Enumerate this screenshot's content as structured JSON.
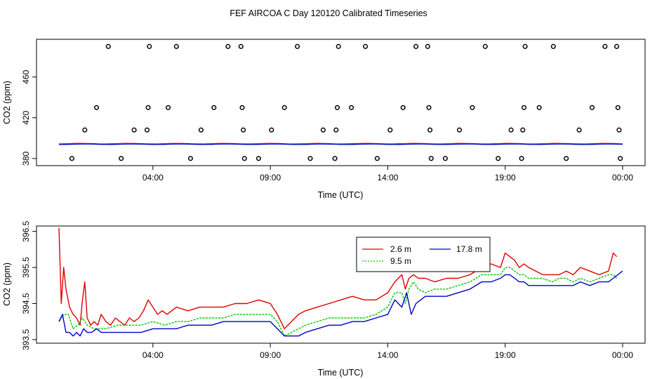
{
  "figure_title": "FEF AIRCOA C  Day 120120  Calibrated Timeseries",
  "colors": {
    "red": "#e00000",
    "green": "#00c800",
    "blue": "#0000c8",
    "axis": "#000000",
    "markers": "#000000"
  },
  "chart_data": [
    {
      "type": "scatter",
      "name": "raw-ppm-panel",
      "title": "",
      "xlabel": "Time (UTC)",
      "ylabel": "CO2 (ppm)",
      "xlim": [
        0,
        24.0
      ],
      "ylim": [
        373,
        497
      ],
      "xticks": [
        4,
        9,
        14,
        19,
        24
      ],
      "xtick_labels": [
        "04:00",
        "09:00",
        "14:00",
        "19:00",
        "00:00"
      ],
      "yticks": [
        380,
        420,
        460
      ],
      "ytick_labels": [
        "380",
        "420",
        "460"
      ],
      "marker_series": {
        "name": "calibration standards",
        "points": [
          [
            0.55,
            380
          ],
          [
            1.1,
            408
          ],
          [
            1.6,
            430
          ],
          [
            2.1,
            490
          ],
          [
            2.65,
            380
          ],
          [
            3.2,
            408
          ],
          [
            3.75,
            408
          ],
          [
            3.8,
            430
          ],
          [
            3.85,
            490
          ],
          [
            4.65,
            430
          ],
          [
            5.0,
            490
          ],
          [
            5.6,
            380
          ],
          [
            6.05,
            408
          ],
          [
            6.6,
            430
          ],
          [
            7.2,
            490
          ],
          [
            7.75,
            490
          ],
          [
            7.8,
            430
          ],
          [
            7.85,
            408
          ],
          [
            7.9,
            380
          ],
          [
            8.5,
            380
          ],
          [
            9.05,
            408
          ],
          [
            9.6,
            430
          ],
          [
            10.15,
            490
          ],
          [
            10.7,
            380
          ],
          [
            11.25,
            408
          ],
          [
            11.8,
            408
          ],
          [
            11.85,
            430
          ],
          [
            11.9,
            490
          ],
          [
            11.75,
            380
          ],
          [
            12.45,
            430
          ],
          [
            13.05,
            490
          ],
          [
            13.55,
            380
          ],
          [
            14.1,
            408
          ],
          [
            14.65,
            430
          ],
          [
            15.2,
            490
          ],
          [
            15.7,
            490
          ],
          [
            15.75,
            430
          ],
          [
            15.8,
            408
          ],
          [
            15.85,
            380
          ],
          [
            16.45,
            380
          ],
          [
            17.05,
            408
          ],
          [
            17.6,
            430
          ],
          [
            18.15,
            490
          ],
          [
            18.7,
            380
          ],
          [
            19.25,
            408
          ],
          [
            19.75,
            408
          ],
          [
            19.8,
            430
          ],
          [
            19.85,
            490
          ],
          [
            19.7,
            380
          ],
          [
            20.45,
            430
          ],
          [
            21.05,
            490
          ],
          [
            21.6,
            380
          ],
          [
            22.15,
            408
          ],
          [
            22.7,
            430
          ],
          [
            23.25,
            490
          ],
          [
            23.75,
            490
          ],
          [
            23.8,
            430
          ],
          [
            23.85,
            408
          ],
          [
            23.9,
            380
          ]
        ]
      },
      "line_series": [
        {
          "name": "2.6 m",
          "color": "#e00000",
          "level": 394.6
        },
        {
          "name": "9.5 m",
          "color": "#00c800",
          "level": 394.3
        },
        {
          "name": "17.8 m",
          "color": "#0000c8",
          "level": 394.0
        }
      ]
    },
    {
      "type": "line",
      "name": "smoothed-ppm-panel",
      "title": "",
      "xlabel": "Time (UTC)",
      "ylabel": "CO2 (ppm)",
      "xlim": [
        0,
        24.0
      ],
      "ylim": [
        393.4,
        396.65
      ],
      "xticks": [
        4,
        9,
        14,
        19,
        24
      ],
      "xtick_labels": [
        "04:00",
        "09:00",
        "14:00",
        "19:00",
        "00:00"
      ],
      "yticks": [
        393.5,
        394.5,
        395.5,
        396.5
      ],
      "ytick_labels": [
        "393.5",
        "394.5",
        "395.5",
        "396.5"
      ],
      "legend": {
        "position": "top-center-right",
        "entries": [
          "2.6 m",
          "9.5 m",
          "17.8 m"
        ]
      },
      "series": [
        {
          "name": "2.6 m",
          "color": "#e00000",
          "x": [
            0.0,
            0.1,
            0.2,
            0.3,
            0.45,
            0.6,
            0.75,
            0.9,
            1.0,
            1.1,
            1.2,
            1.35,
            1.5,
            1.65,
            1.8,
            2.0,
            2.2,
            2.4,
            2.6,
            2.8,
            3.0,
            3.2,
            3.4,
            3.6,
            3.8,
            4.0,
            4.2,
            4.4,
            4.6,
            4.8,
            5.0,
            5.5,
            6.0,
            6.5,
            7.0,
            7.5,
            8.0,
            8.5,
            9.0,
            9.3,
            9.6,
            9.9,
            10.2,
            10.5,
            11.0,
            11.5,
            12.0,
            12.5,
            13.0,
            13.5,
            14.0,
            14.3,
            14.6,
            14.75,
            14.9,
            15.1,
            15.3,
            15.6,
            16.0,
            16.5,
            17.0,
            17.5,
            18.0,
            18.4,
            18.8,
            19.0,
            19.2,
            19.4,
            19.6,
            19.8,
            20.0,
            20.3,
            20.6,
            21.0,
            21.3,
            21.6,
            21.9,
            22.2,
            22.6,
            23.0,
            23.4,
            23.6,
            23.75
          ],
          "y": [
            396.6,
            394.5,
            395.5,
            394.9,
            394.4,
            394.2,
            394.1,
            393.9,
            394.6,
            395.1,
            394.1,
            393.9,
            394.0,
            393.9,
            394.2,
            394.0,
            393.9,
            394.1,
            394.0,
            393.9,
            394.1,
            394.0,
            394.1,
            394.3,
            394.6,
            394.4,
            394.2,
            394.3,
            394.2,
            394.3,
            394.4,
            394.3,
            394.4,
            394.4,
            394.4,
            394.5,
            394.5,
            394.6,
            394.5,
            394.2,
            393.8,
            394.0,
            394.2,
            394.3,
            394.4,
            394.5,
            394.6,
            394.7,
            394.6,
            394.6,
            394.8,
            395.1,
            395.3,
            394.9,
            395.2,
            395.3,
            395.2,
            395.2,
            395.1,
            395.2,
            395.2,
            395.3,
            395.5,
            395.6,
            395.5,
            395.9,
            395.8,
            395.7,
            395.5,
            395.6,
            395.5,
            395.4,
            395.3,
            395.3,
            395.3,
            395.4,
            395.3,
            395.5,
            395.4,
            395.3,
            395.4,
            395.9,
            395.8
          ]
        },
        {
          "name": "9.5 m",
          "color": "#00c800",
          "x": [
            0.0,
            0.2,
            0.4,
            0.6,
            0.8,
            1.0,
            1.2,
            1.5,
            2.0,
            2.5,
            3.0,
            3.5,
            4.0,
            4.5,
            5.0,
            5.5,
            6.0,
            6.5,
            7.0,
            7.5,
            8.0,
            8.5,
            9.0,
            9.3,
            9.6,
            9.9,
            10.2,
            10.5,
            11.0,
            11.5,
            12.0,
            12.5,
            13.0,
            13.5,
            14.0,
            14.3,
            14.6,
            14.75,
            14.9,
            15.1,
            15.3,
            15.6,
            16.0,
            16.5,
            17.0,
            17.5,
            18.0,
            18.4,
            18.8,
            19.0,
            19.2,
            19.4,
            19.6,
            19.8,
            20.0,
            20.3,
            20.6,
            21.0,
            21.3,
            21.6,
            21.9,
            22.2,
            22.6,
            23.0,
            23.4,
            23.6,
            23.75
          ],
          "y": [
            394.0,
            394.2,
            394.2,
            393.8,
            393.9,
            394.1,
            393.9,
            393.8,
            393.8,
            393.9,
            393.9,
            393.9,
            394.0,
            393.9,
            394.0,
            394.0,
            394.1,
            394.1,
            394.1,
            394.2,
            394.2,
            394.2,
            394.2,
            394.0,
            393.6,
            393.7,
            393.8,
            393.9,
            394.0,
            394.1,
            394.1,
            394.1,
            394.1,
            394.2,
            394.4,
            394.8,
            394.8,
            394.5,
            394.9,
            395.1,
            394.9,
            394.8,
            394.9,
            394.9,
            395.0,
            395.1,
            395.3,
            395.3,
            395.3,
            395.5,
            395.5,
            395.4,
            395.3,
            395.3,
            395.2,
            395.2,
            395.2,
            395.1,
            395.2,
            395.2,
            395.1,
            395.2,
            395.1,
            395.2,
            395.3,
            395.3,
            395.2
          ]
        },
        {
          "name": "17.8 m",
          "color": "#0000c8",
          "x": [
            0.0,
            0.15,
            0.3,
            0.45,
            0.6,
            0.75,
            0.9,
            1.05,
            1.2,
            1.4,
            1.6,
            1.8,
            2.0,
            2.5,
            3.0,
            3.5,
            4.0,
            4.5,
            5.0,
            5.5,
            6.0,
            6.5,
            7.0,
            7.5,
            8.0,
            8.5,
            9.0,
            9.3,
            9.6,
            9.9,
            10.2,
            10.5,
            11.0,
            11.5,
            12.0,
            12.5,
            13.0,
            13.5,
            14.0,
            14.3,
            14.6,
            14.8,
            15.0,
            15.2,
            15.4,
            15.6,
            16.0,
            16.5,
            17.0,
            17.5,
            18.0,
            18.4,
            18.8,
            19.0,
            19.2,
            19.4,
            19.6,
            19.8,
            20.0,
            20.3,
            20.6,
            21.0,
            21.3,
            21.6,
            21.9,
            22.2,
            22.6,
            23.0,
            23.4,
            23.6,
            24.0
          ],
          "y": [
            394.0,
            394.2,
            393.7,
            393.7,
            393.6,
            393.7,
            393.6,
            393.8,
            393.7,
            393.7,
            393.8,
            393.7,
            393.7,
            393.7,
            393.7,
            393.7,
            393.8,
            393.8,
            393.8,
            393.9,
            393.9,
            393.9,
            394.0,
            394.0,
            394.0,
            394.0,
            394.0,
            393.8,
            393.6,
            393.6,
            393.6,
            393.7,
            393.8,
            393.9,
            393.9,
            394.0,
            394.0,
            394.1,
            394.2,
            394.6,
            394.4,
            394.8,
            394.2,
            394.5,
            394.6,
            394.7,
            394.7,
            394.7,
            394.8,
            394.9,
            395.1,
            395.1,
            395.2,
            395.3,
            395.3,
            395.2,
            395.1,
            395.1,
            395.0,
            395.0,
            395.0,
            395.0,
            395.0,
            395.0,
            395.0,
            395.1,
            395.0,
            395.1,
            395.1,
            395.2,
            395.4
          ]
        }
      ]
    }
  ]
}
